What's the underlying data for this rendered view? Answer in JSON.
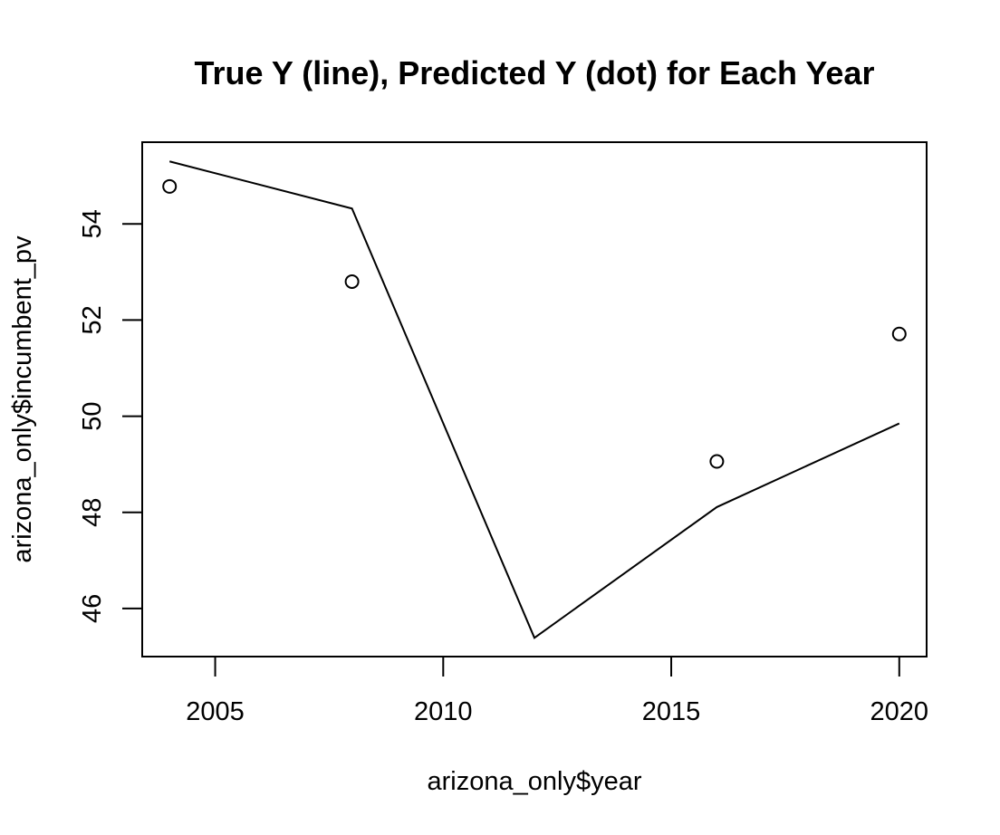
{
  "chart_data": {
    "type": "line",
    "title": "True Y (line), Predicted Y (dot) for Each Year",
    "xlabel": "arizona_only$year",
    "ylabel": "arizona_only$incumbent_pv",
    "xlim": [
      2003.4,
      2020.6
    ],
    "ylim": [
      45.0,
      55.7
    ],
    "x_ticks": [
      2005,
      2010,
      2015,
      2020
    ],
    "y_ticks": [
      46,
      48,
      50,
      52,
      54
    ],
    "grid": false,
    "series": [
      {
        "style": "line",
        "x": [
          2004,
          2008,
          2012,
          2016,
          2020
        ],
        "y": [
          55.3,
          54.32,
          45.39,
          48.11,
          49.85
        ]
      },
      {
        "style": "points",
        "x": [
          2004,
          2008,
          2016,
          2020
        ],
        "y": [
          54.78,
          52.8,
          49.06,
          51.71
        ]
      }
    ],
    "colors": {
      "line": "#000000",
      "points": "#000000"
    }
  }
}
